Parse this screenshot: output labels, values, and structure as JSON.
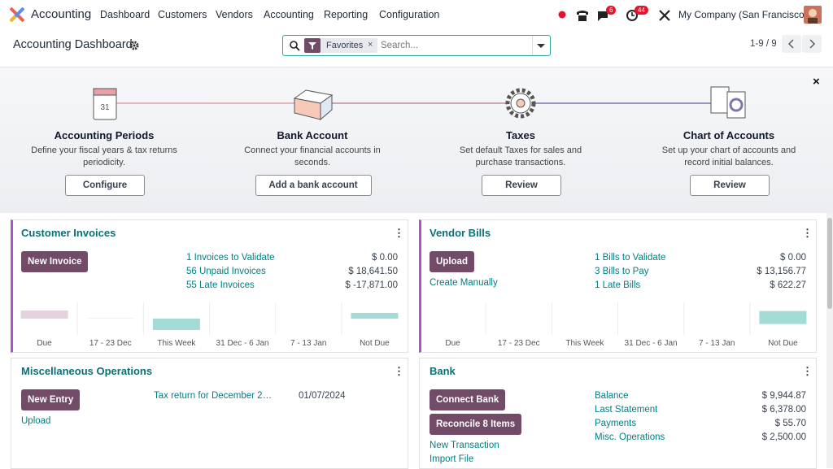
{
  "navbar": {
    "app": "Accounting",
    "menu": [
      "Dashboard",
      "Customers",
      "Vendors",
      "Accounting",
      "Reporting",
      "Configuration"
    ],
    "chat_badge": 6,
    "activity_badge": 44,
    "company": "My Company (San Francisco)"
  },
  "control_panel": {
    "title": "Accounting Dashboard",
    "facet": "Favorites",
    "search_placeholder": "Search...",
    "pager": "1-9 / 9"
  },
  "onboarding": {
    "steps": [
      {
        "title": "Accounting Periods",
        "description": "Define your fiscal years & tax returns periodicity.",
        "button": "Configure"
      },
      {
        "title": "Bank Account",
        "description": "Connect your financial accounts in seconds.",
        "button": "Add a bank account"
      },
      {
        "title": "Taxes",
        "description": "Set default Taxes for sales and purchase transactions.",
        "button": "Review"
      },
      {
        "title": "Chart of Accounts",
        "description": "Set up your chart of accounts and record initial balances.",
        "button": "Review"
      }
    ]
  },
  "cards": [
    {
      "title": "Customer Invoices",
      "buttons": [
        "New Invoice"
      ],
      "links": [],
      "rows": [
        {
          "label": "1 Invoices to Validate",
          "amount": "$ 0.00"
        },
        {
          "label": "56 Unpaid Invoices",
          "amount": "$ 18,641.50"
        },
        {
          "label": "55 Late Invoices",
          "amount": "$ -17,871.00"
        }
      ],
      "graph": {
        "categories": [
          "Due",
          "17 - 23 Dec",
          "This Week",
          "31 Dec - 6 Jan",
          "7 - 13 Jan",
          "Not Due"
        ],
        "values": [
          10,
          0.5,
          -14,
          0,
          0,
          7
        ],
        "colors": [
          "#e4d2e1",
          "#e4e4e4",
          "#a3dcd7",
          "#a3dcd7",
          "#a3dcd7",
          "#a3dcd7"
        ],
        "ylim": [
          -20,
          20
        ]
      }
    },
    {
      "title": "Vendor Bills",
      "buttons": [
        "Upload"
      ],
      "links": [
        "Create Manually"
      ],
      "rows": [
        {
          "label": "1 Bills to Validate",
          "amount": "$ 0.00"
        },
        {
          "label": "3 Bills to Pay",
          "amount": "$ 13,156.77"
        },
        {
          "label": "1 Late Bills",
          "amount": "$ 622.27"
        }
      ],
      "graph": {
        "categories": [
          "Due",
          "17 - 23 Dec",
          "This Week",
          "31 Dec - 6 Jan",
          "7 - 13 Jan",
          "Not Due"
        ],
        "values": [
          0,
          0,
          0,
          0,
          0,
          12
        ],
        "colors": [
          "#a3dcd7",
          "#a3dcd7",
          "#a3dcd7",
          "#a3dcd7",
          "#a3dcd7",
          "#a3dcd7"
        ],
        "ylim": [
          -10,
          20
        ]
      }
    },
    {
      "title": "Miscellaneous Operations",
      "buttons": [
        "New Entry"
      ],
      "links": [
        "Upload"
      ],
      "rows": [
        {
          "label": "Tax return for December 2…",
          "amount": "01/07/2024"
        }
      ]
    },
    {
      "title": "Bank",
      "buttons": [
        "Connect Bank",
        "Reconcile 8 Items"
      ],
      "links": [
        "New Transaction",
        "Import File"
      ],
      "rows": [
        {
          "label": "Balance",
          "amount": "$ 9,944.87"
        },
        {
          "label": "Last Statement",
          "amount": "$ 6,378.00"
        },
        {
          "label": "Payments",
          "amount": "$ 55.70"
        },
        {
          "label": "Misc. Operations",
          "amount": "$ 2,500.00"
        }
      ]
    }
  ]
}
